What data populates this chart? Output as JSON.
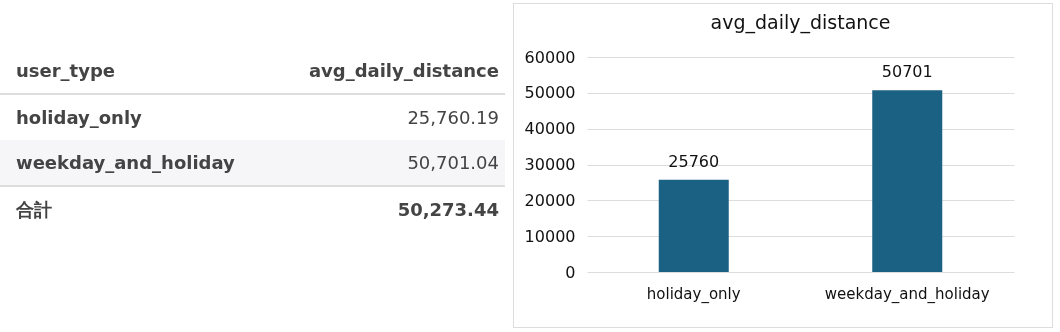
{
  "chart_data": [
    {
      "type": "other",
      "annotations": [
        "user_type",
        "avg_daily_distance",
        "holiday_only",
        "25,760.19",
        "weekday_and_holiday",
        "50,701.04",
        "合計",
        "50,273.44"
      ]
    },
    {
      "type": "bar",
      "title": "avg_daily_distance",
      "categories": [
        "holiday_only",
        "weekday_and_holiday"
      ],
      "values": [
        25760,
        50701
      ],
      "color": "#1b6183",
      "data_labels": true,
      "ylim": [
        0,
        60000
      ],
      "yticks": [
        0,
        10000,
        20000,
        30000,
        40000,
        50000,
        60000
      ],
      "grid": "y"
    }
  ]
}
